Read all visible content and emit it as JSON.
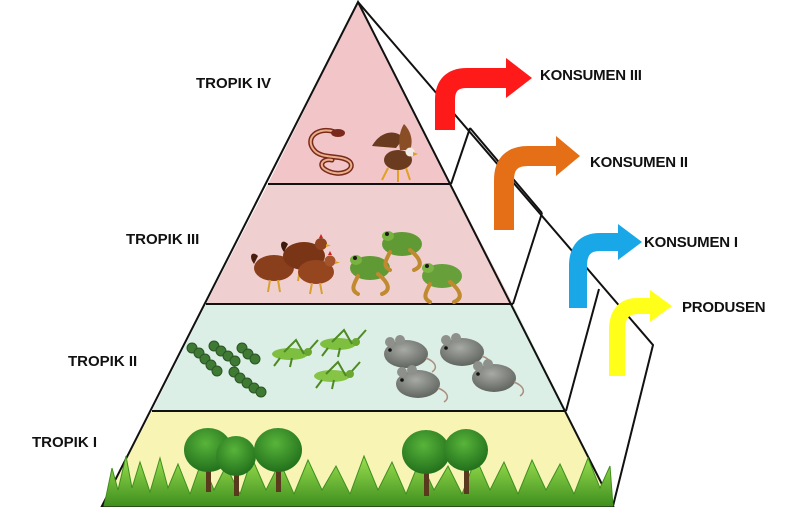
{
  "diagram": {
    "title_visible": false,
    "levels": [
      {
        "tropik": "TROPIK IV",
        "konsumen": "KONSUMEN III",
        "organisms": [
          "snake",
          "eagle"
        ],
        "band_color": "#f2c6c9",
        "arrow_color": "#ff1a1a"
      },
      {
        "tropik": "TROPIK III",
        "konsumen": "KONSUMEN II",
        "organisms": [
          "chicken",
          "frog"
        ],
        "band_color": "#f0cfd0",
        "arrow_color": "#e46f17"
      },
      {
        "tropik": "TROPIK II",
        "konsumen": "KONSUMEN I",
        "organisms": [
          "caterpillar",
          "grasshopper",
          "mouse"
        ],
        "band_color": "#dcefe6",
        "arrow_color": "#19a7e8"
      },
      {
        "tropik": "TROPIK I",
        "konsumen": "PRODUSEN",
        "organisms": [
          "tree",
          "grass"
        ],
        "band_color": "#f7f4b4",
        "arrow_color": "#ffff1a"
      }
    ]
  }
}
